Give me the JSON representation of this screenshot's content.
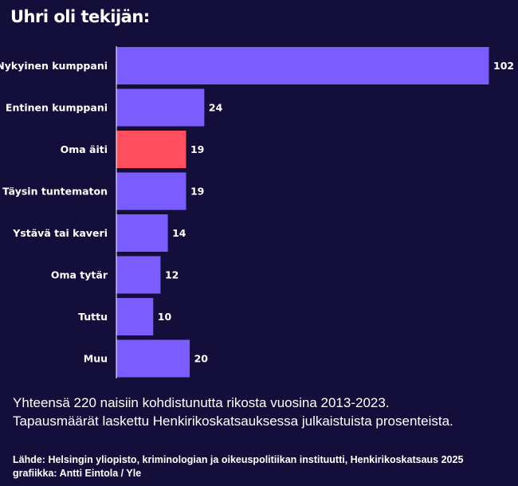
{
  "title": "Uhri oli tekijän:",
  "chart_data": {
    "type": "bar",
    "orientation": "horizontal",
    "title": "Uhri oli tekijän:",
    "categories": [
      "Nykyinen kumppani",
      "Entinen kumppani",
      "Oma äiti",
      "Täysin tuntematon",
      "Ystävä tai kaveri",
      "Oma tytär",
      "Tuttu",
      "Muu"
    ],
    "values": [
      102,
      24,
      19,
      19,
      14,
      12,
      10,
      20
    ],
    "highlight_index": 2,
    "colors": {
      "bar": "#7b5cff",
      "highlight": "#ff4f5e",
      "axis": "#ffffff",
      "background": "#140f3a"
    },
    "xlim": [
      0,
      102
    ],
    "grid": false,
    "legend": "none"
  },
  "note_lines": [
    "Yhteensä 220 naisiin kohdistunutta rikosta vuosina 2013-2023.",
    "Tapausmäärät laskettu Henkirikoskatsauksessa julkaistuista prosenteista."
  ],
  "source_lines": [
    "Lähde: Helsingin yliopisto, kriminologian ja oikeuspolitiikan instituutti, Henkirikoskatsaus 2025",
    "grafiikka: Antti Eintola / Yle"
  ]
}
